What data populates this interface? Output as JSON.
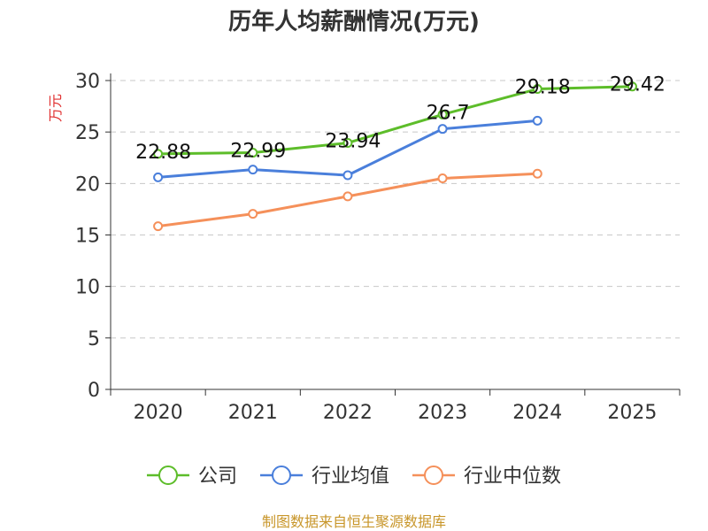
{
  "chart_data": {
    "type": "line",
    "title": "历年人均薪酬情况(万元)",
    "ylabel": "万元",
    "xlabel": "",
    "categories": [
      "2020",
      "2021",
      "2022",
      "2023",
      "2024",
      "2025"
    ],
    "ylim": [
      0,
      30
    ],
    "yticks": [
      0,
      5,
      10,
      15,
      20,
      25,
      30
    ],
    "grid": true,
    "legend_position": "bottom",
    "series": [
      {
        "name": "公司",
        "color": "#5dbd2a",
        "values": [
          22.88,
          22.99,
          23.94,
          26.7,
          29.18,
          29.42
        ],
        "labels": [
          "22.88",
          "22.99",
          "23.94",
          "26.7",
          "29.18",
          "29.42"
        ]
      },
      {
        "name": "行业均值",
        "color": "#4a7fdb",
        "values": [
          20.6,
          21.35,
          20.8,
          25.3,
          26.1,
          null
        ]
      },
      {
        "name": "行业中位数",
        "color": "#f5905a",
        "values": [
          15.85,
          17.05,
          18.75,
          20.5,
          20.95,
          null
        ]
      }
    ]
  },
  "footer": {
    "source": "制图数据来自恒生聚源数据库"
  }
}
